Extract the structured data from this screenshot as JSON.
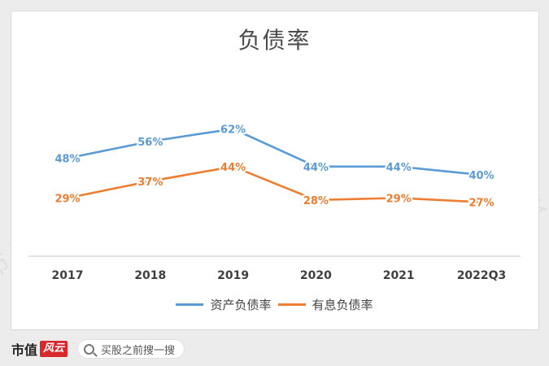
{
  "chart_data": {
    "type": "line",
    "title": "负债率",
    "categories": [
      "2017",
      "2018",
      "2019",
      "2020",
      "2021",
      "2022Q3"
    ],
    "series": [
      {
        "name": "资产负债率",
        "values": [
          48,
          56,
          62,
          44,
          44,
          40
        ],
        "labels": [
          "48%",
          "56%",
          "62%",
          "44%",
          "44%",
          "40%"
        ],
        "color": "#5b9bd5"
      },
      {
        "name": "有息负债率",
        "values": [
          29,
          37,
          44,
          28,
          29,
          27
        ],
        "labels": [
          "29%",
          "37%",
          "44%",
          "28%",
          "29%",
          "27%"
        ],
        "color": "#ed7d31"
      }
    ],
    "ylim": [
      0,
      75
    ],
    "grid": false,
    "legend": "bottom",
    "unit": "%"
  },
  "footer": {
    "brand_text": "市值",
    "brand_stamp": "风云",
    "search_placeholder": "买股之前搜一搜"
  },
  "watermark_text": "市值风云",
  "colors": {
    "background": "#ececec",
    "card": "#ffffff",
    "axis": "#d9d9d9",
    "tick_text": "#404040"
  }
}
